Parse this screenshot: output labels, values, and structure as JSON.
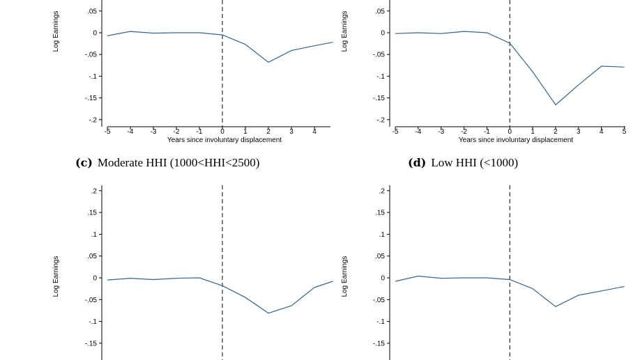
{
  "captions": [
    {
      "label": "(c)",
      "text": "Moderate HHI (1000<HHI<2500)"
    },
    {
      "label": "(d)",
      "text": "Low HHI (<1000)"
    }
  ],
  "chart_data": [
    {
      "type": "line",
      "xlabel": "Years since involuntary displacement",
      "ylabel": "Log Earnings",
      "x_ticks": [
        "-5",
        "-4",
        "-3",
        "-2",
        "-1",
        "0",
        "1",
        "2",
        "3",
        "4"
      ],
      "y_ticks": [
        ".05",
        "0",
        "-.05",
        "-.1",
        "-.15",
        "-.2"
      ],
      "xlim": [
        -5,
        4.8
      ],
      "ylim": [
        -0.2,
        0.05
      ],
      "event_line_x": 0,
      "series": [
        {
          "x": [
            -5,
            -4,
            -3,
            -2,
            -1,
            0,
            1,
            2,
            3,
            4,
            4.8
          ],
          "y": [
            -0.007,
            0.003,
            -0.001,
            0.0,
            0.0,
            -0.005,
            -0.027,
            -0.068,
            -0.041,
            -0.03,
            -0.022
          ]
        }
      ]
    },
    {
      "type": "line",
      "xlabel": "Years since involuntary displacement",
      "ylabel": "Log Earnings",
      "x_ticks": [
        "-5",
        "-4",
        "-3",
        "-2",
        "-1",
        "0",
        "1",
        "2",
        "3",
        "4",
        "5"
      ],
      "y_ticks": [
        ".05",
        "0",
        "-.05",
        "-.1",
        "-.15",
        "-.2"
      ],
      "xlim": [
        -5,
        5
      ],
      "ylim": [
        -0.2,
        0.05
      ],
      "event_line_x": 0,
      "series": [
        {
          "x": [
            -5,
            -4,
            -3,
            -2,
            -1,
            0,
            1,
            2,
            3,
            4,
            5
          ],
          "y": [
            -0.002,
            0.0,
            -0.002,
            0.003,
            0.0,
            -0.024,
            -0.09,
            -0.166,
            -0.12,
            -0.077,
            -0.079
          ]
        }
      ]
    },
    {
      "type": "line",
      "xlabel": "",
      "ylabel": "Log Earnings",
      "x_ticks": [],
      "y_ticks": [
        ".2",
        ".15",
        ".1",
        ".05",
        "0",
        "-.05",
        "-.1",
        "-.15"
      ],
      "xlim": [
        -5,
        4.8
      ],
      "ylim": [
        -0.2,
        0.2
      ],
      "event_line_x": 0,
      "series": [
        {
          "x": [
            -5,
            -4,
            -3,
            -2,
            -1,
            0,
            1,
            2,
            3,
            4,
            4.8
          ],
          "y": [
            -0.005,
            -0.001,
            -0.004,
            -0.001,
            0.0,
            -0.018,
            -0.045,
            -0.081,
            -0.064,
            -0.022,
            -0.008
          ]
        }
      ]
    },
    {
      "type": "line",
      "xlabel": "",
      "ylabel": "Log Earnings",
      "x_ticks": [],
      "y_ticks": [
        ".2",
        ".15",
        ".1",
        ".05",
        "0",
        "-.05",
        "-.1",
        "-.15"
      ],
      "xlim": [
        -5,
        5
      ],
      "ylim": [
        -0.2,
        0.2
      ],
      "event_line_x": 0,
      "series": [
        {
          "x": [
            -5,
            -4,
            -3,
            -2,
            -1,
            0,
            1,
            2,
            3,
            4,
            5
          ],
          "y": [
            -0.008,
            0.004,
            -0.001,
            0.0,
            0.0,
            -0.004,
            -0.025,
            -0.066,
            -0.04,
            -0.03,
            -0.02
          ]
        }
      ]
    }
  ]
}
